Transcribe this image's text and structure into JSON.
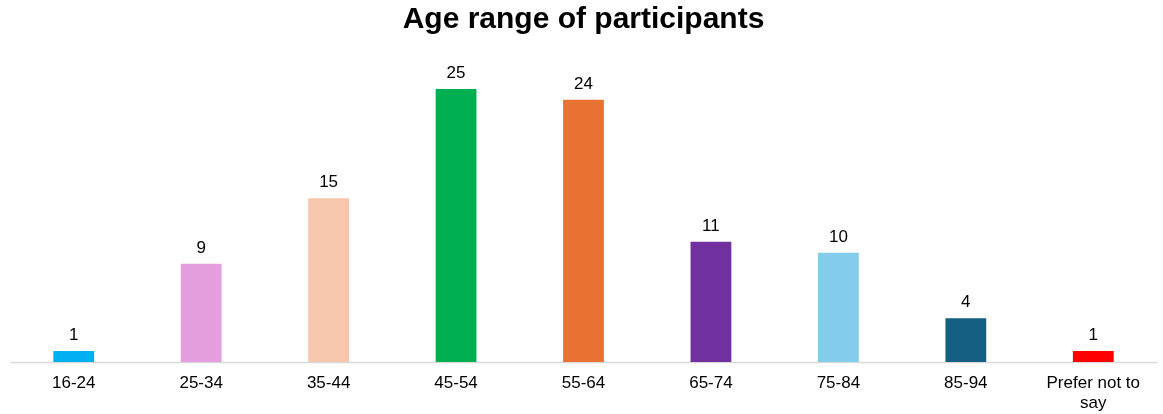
{
  "chart_data": {
    "type": "bar",
    "title": "Age range of participants",
    "categories": [
      "16-24",
      "25-34",
      "35-44",
      "45-54",
      "55-64",
      "65-74",
      "75-84",
      "85-94",
      "Prefer not to say"
    ],
    "values": [
      1,
      9,
      15,
      25,
      24,
      11,
      10,
      4,
      1
    ],
    "colors": [
      "#00b0f0",
      "#e59edd",
      "#f6c6ad",
      "#00b050",
      "#e97132",
      "#7030a0",
      "#83cceb",
      "#156082",
      "#ff0000"
    ],
    "data_labels": true,
    "grid": false,
    "legend": false
  }
}
